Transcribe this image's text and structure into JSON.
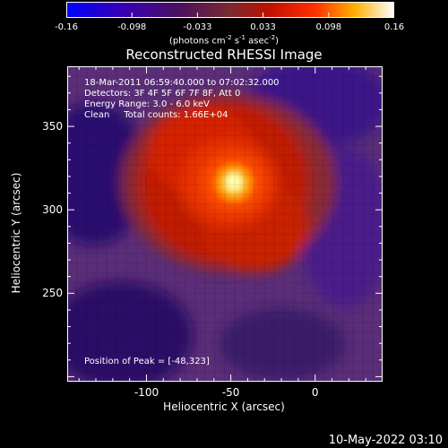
{
  "colorbar": {
    "tick_labels": [
      "-0.16",
      "-0.098",
      "-0.033",
      "0.033",
      "0.098",
      "0.16"
    ],
    "units_label": "(photons cm",
    "units_exp1": "-2",
    "units_mid": " s",
    "units_exp2": "-1",
    "units_end": " asec",
    "units_exp3": "-2",
    "units_close": ")",
    "range": [
      -0.16,
      0.16
    ]
  },
  "image": {
    "title": "Reconstructed RHESSI Image",
    "xlabel": "Heliocentric X (arcsec)",
    "ylabel": "Heliocentric Y (arcsec)",
    "x_ticks": [
      "-100",
      "-50",
      "0"
    ],
    "y_ticks": [
      "350",
      "300",
      "250"
    ],
    "xlim": [
      -147,
      40
    ],
    "ylim": [
      197,
      386
    ],
    "info_lines": [
      "18-Mar-2011 06:59:40.000 to 07:02:32.000",
      "Detectors: 3F 4F 5F 6F 7F 8F, Att 0",
      "Energy Range: 3.0 - 6.0 keV",
      "Clean     Total counts: 1.66E+04"
    ],
    "peak_label": "Position of Peak = [-48,323]",
    "peak": [
      -48,
      323
    ],
    "colors": {
      "background": "#000000",
      "negative": "#3a0a86",
      "neutral": "#6e3a6e",
      "positive": "#d62000",
      "peak": "#ffff9a"
    }
  },
  "footer": {
    "timestamp": "10-May-2022 03:10"
  }
}
